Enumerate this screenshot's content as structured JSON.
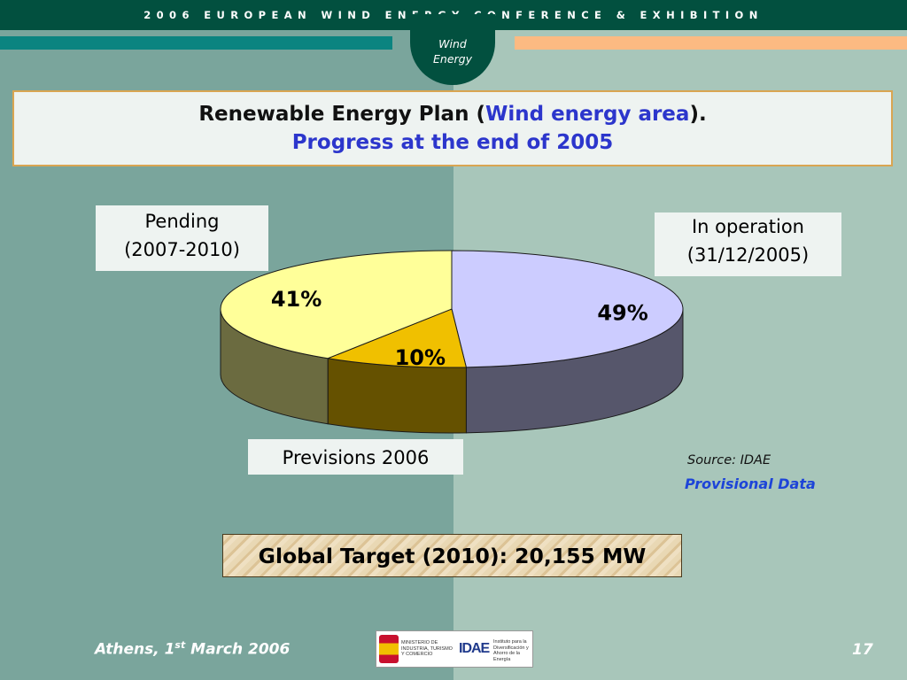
{
  "header": {
    "conference": "2006 EUROPEAN WIND ENERGY CONFERENCE & EXHIBITION",
    "logo_line1": "Wind",
    "logo_line2": "Energy"
  },
  "title": {
    "line1_prefix": "Renewable Energy Plan (",
    "line1_highlight": "Wind energy area",
    "line1_suffix": ").",
    "line2": "Progress at the end of 2005"
  },
  "labels": {
    "pending_line1": "Pending",
    "pending_line2": "(2007-2010)",
    "operation_line1": "In operation",
    "operation_line2": "(31/12/2005)",
    "previsions": "Previsions 2006"
  },
  "chart_data": {
    "type": "pie",
    "style": "3d",
    "slices": [
      {
        "label": "In operation (31/12/2005)",
        "value": 49,
        "value_label": "49%",
        "color": "#ccccff"
      },
      {
        "label": "Previsions 2006",
        "value": 10,
        "value_label": "10%",
        "color": "#f0c000"
      },
      {
        "label": "Pending (2007-2010)",
        "value": 41,
        "value_label": "41%",
        "color": "#ffff99"
      }
    ]
  },
  "notes": {
    "source": "Source: IDAE",
    "provisional": "Provisional Data"
  },
  "target": {
    "text": "Global Target (2010): 20,155 MW"
  },
  "footer": {
    "location_prefix": "Athens, 1",
    "location_sup": "st",
    "location_suffix": " March 2006",
    "page_number": "17",
    "logo_ministry": "MINISTERIO DE INDUSTRIA, TURISMO Y COMERCIO",
    "logo_idae": "IDAE",
    "logo_institute": "Instituto para la Diversificación y Ahorro de la Energía"
  }
}
